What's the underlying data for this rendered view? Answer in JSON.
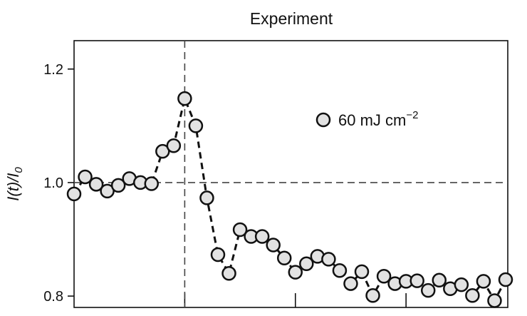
{
  "chart_data": {
    "type": "scatter",
    "title": "Experiment",
    "xlabel": "",
    "ylabel": "I(t)/I0",
    "ylabel_parts": {
      "main": "I(t)/I",
      "subscript": "0"
    },
    "ylim": [
      0.78,
      1.25
    ],
    "yticks": [
      0.8,
      1.0,
      1.2
    ],
    "ytick_labels": [
      "0.8",
      "1.0",
      "1.2"
    ],
    "xlim": [
      0,
      78
    ],
    "xticks_positions": [
      20,
      40,
      60
    ],
    "reference_lines": {
      "horizontal_y": 1.0,
      "vertical_x": 20
    },
    "grid": false,
    "legend_position": "top-right",
    "marker_color": "#e2e2e2",
    "marker_edge_color": "#111111",
    "line_style": "dashed",
    "series": [
      {
        "name": "60 mJ cm",
        "name_superscript": "−2",
        "x": [
          0,
          2,
          4,
          6,
          8,
          10,
          12,
          14,
          16,
          18,
          20,
          22,
          24,
          26,
          28,
          30,
          32,
          34,
          36,
          38,
          40,
          42,
          44,
          46,
          48,
          50,
          52,
          54,
          56,
          58,
          60,
          62,
          64,
          66,
          68,
          70,
          72,
          74,
          76,
          78
        ],
        "values": [
          0.98,
          1.01,
          0.997,
          0.985,
          0.995,
          1.007,
          1.0,
          0.998,
          1.055,
          1.065,
          1.148,
          1.1,
          0.973,
          0.873,
          0.84,
          0.917,
          0.905,
          0.905,
          0.89,
          0.867,
          0.842,
          0.857,
          0.87,
          0.865,
          0.845,
          0.822,
          0.843,
          0.801,
          0.835,
          0.822,
          0.826,
          0.827,
          0.81,
          0.828,
          0.813,
          0.82,
          0.801,
          0.826,
          0.792,
          0.829
        ]
      }
    ]
  }
}
